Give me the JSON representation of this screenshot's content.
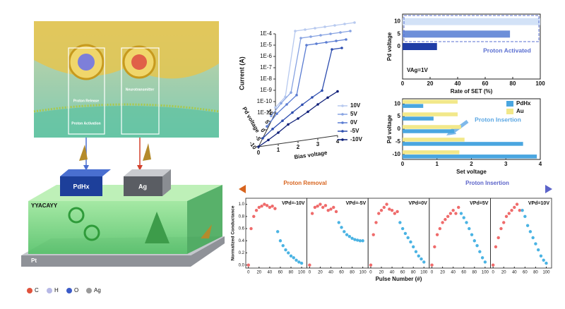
{
  "illustration": {
    "proton_release": "Proton Release",
    "neurotransmitter": "Neurotransmitter",
    "proton_activation": "Proton Activation",
    "electrode_1": "PdHx",
    "electrode_2": "Ag",
    "peptide": "YYACAYY",
    "substrate": "Pt",
    "legend": [
      "C",
      "H",
      "O",
      "Ag"
    ]
  },
  "chart_data": [
    {
      "type": "line3d",
      "ylabel": "Current (A)",
      "xlabel": "Bias voltage",
      "zlabel": "Pd voltage",
      "log_y": true,
      "x": [
        0,
        0.5,
        1,
        1.5,
        2,
        2.5,
        3,
        3.5,
        4
      ],
      "ylim": [
        1e-11,
        0.0001
      ],
      "yticks": [
        {
          "value": 0.0001,
          "label": "1E-4"
        },
        {
          "value": 1e-05,
          "label": "1E-5"
        },
        {
          "value": 1e-06,
          "label": "1E-6"
        },
        {
          "value": 1e-07,
          "label": "1E-7"
        },
        {
          "value": 1e-08,
          "label": "1E-8"
        },
        {
          "value": 1e-09,
          "label": "1E-9"
        },
        {
          "value": 1e-10,
          "label": "1E-10"
        },
        {
          "value": 1e-11,
          "label": "1E-11"
        }
      ],
      "xticks": [
        0,
        1,
        2,
        3,
        4
      ],
      "zticks": [
        10,
        5,
        0,
        -5,
        -10
      ],
      "series": [
        {
          "name": "10V",
          "color": "#b7c9ef",
          "values": [
            3e-11,
            2e-10,
            0.0001,
            0.0001,
            0.0001,
            0.0001,
            0.0001,
            0.0001,
            0.0001
          ]
        },
        {
          "name": "5V",
          "color": "#87a3e2",
          "values": [
            3e-11,
            3e-10,
            2e-09,
            0.0001,
            0.0001,
            0.0001,
            0.0001,
            0.0001,
            0.0001
          ]
        },
        {
          "name": "0V",
          "color": "#5a7cd2",
          "values": [
            2e-11,
            2e-10,
            1e-09,
            5e-09,
            0.0001,
            0.0001,
            0.0001,
            0.0001,
            0.0001
          ]
        },
        {
          "name": "-5V",
          "color": "#2c4cae",
          "values": [
            1e-11,
            5e-11,
            2e-10,
            8e-10,
            3e-09,
            1e-08,
            3e-08,
            0.0001,
            0.0001
          ]
        },
        {
          "name": "-10V",
          "color": "#0e1f78",
          "values": [
            1e-11,
            3e-11,
            1e-10,
            4e-10,
            1e-09,
            3e-09,
            1e-08,
            3e-08,
            8e-08
          ]
        }
      ]
    },
    {
      "type": "bar",
      "ylabel": "Pd voltage",
      "xlabel": "Rate of SET (%)",
      "annotations": [
        "Proton Activated",
        "VAg=1V"
      ],
      "y": [
        10,
        5,
        0
      ],
      "ylim": [
        -13,
        13
      ],
      "yticks": [
        0,
        5,
        10
      ],
      "xlim": [
        0,
        100
      ],
      "xticks": [
        0,
        20,
        40,
        60,
        80,
        100
      ],
      "series": [
        {
          "colors": [
            "#d3e2f7",
            "#6d8fd9",
            "#1f3da6"
          ],
          "values": [
            100,
            78,
            25
          ]
        }
      ]
    },
    {
      "type": "bar",
      "ylabel": "Pd voltage",
      "xlabel": "Set voltage",
      "annotations": [
        "Proton Insertion"
      ],
      "y": [
        10,
        5,
        0,
        -5,
        -10
      ],
      "ylim": [
        -12,
        12
      ],
      "yticks": [
        -10,
        -5,
        0,
        5,
        10
      ],
      "xlim": [
        0,
        4
      ],
      "xticks": [
        0,
        1,
        2,
        3,
        4
      ],
      "series": [
        {
          "name": "PdHx",
          "color": "#4aa6e0",
          "values": [
            0.6,
            0.9,
            1.5,
            3.5,
            3.9
          ]
        },
        {
          "name": "Au",
          "color": "#f2e88a",
          "values": [
            1.6,
            1.6,
            1.7,
            1.8,
            1.65
          ]
        }
      ]
    },
    {
      "type": "scatter",
      "ylabel": "Normalized Conductance",
      "xlabel": "Pulse Number (#)",
      "annotations": [
        "Proton Removal",
        "Proton Insertion"
      ],
      "xlim": [
        -5,
        110
      ],
      "ylim": [
        -0.05,
        1.1
      ],
      "xticks": [
        0,
        20,
        40,
        60,
        80,
        100
      ],
      "yticks": [
        {
          "value": 0,
          "label": "0.0"
        },
        {
          "value": 0.2,
          "label": "0.2"
        },
        {
          "value": 0.4,
          "label": "0.4"
        },
        {
          "value": 0.6,
          "label": "0.6"
        },
        {
          "value": 0.8,
          "label": "0.8"
        },
        {
          "value": 1,
          "label": "1.0"
        }
      ],
      "panels": [
        {
          "label": "VPd=-10V",
          "series": [
            {
              "color": "#ef6b6b",
              "x": [
                0,
                5,
                10,
                15,
                20,
                25,
                30,
                35,
                40,
                45,
                50
              ],
              "values": [
                0.0,
                0.6,
                0.8,
                0.9,
                0.95,
                0.97,
                1.0,
                0.98,
                0.95,
                0.97,
                0.93
              ]
            },
            {
              "color": "#4ab3e3",
              "x": [
                55,
                60,
                65,
                70,
                75,
                80,
                85,
                90,
                95,
                100
              ],
              "values": [
                0.55,
                0.4,
                0.32,
                0.25,
                0.2,
                0.15,
                0.12,
                0.08,
                0.05,
                0.03
              ]
            }
          ]
        },
        {
          "label": "VPd=-5V",
          "series": [
            {
              "color": "#ef6b6b",
              "x": [
                0,
                5,
                10,
                15,
                20,
                25,
                30,
                35,
                40,
                45,
                50
              ],
              "values": [
                0.0,
                0.85,
                0.95,
                0.97,
                1.0,
                0.95,
                0.98,
                0.9,
                0.92,
                0.95,
                0.88
              ]
            },
            {
              "color": "#4ab3e3",
              "x": [
                55,
                60,
                65,
                70,
                75,
                80,
                85,
                90,
                95,
                100
              ],
              "values": [
                0.7,
                0.62,
                0.55,
                0.5,
                0.47,
                0.44,
                0.42,
                0.41,
                0.4,
                0.4
              ]
            }
          ]
        },
        {
          "label": "VPd=0V",
          "series": [
            {
              "color": "#ef6b6b",
              "x": [
                0,
                5,
                10,
                15,
                20,
                25,
                30,
                35,
                40,
                45,
                50
              ],
              "values": [
                0.0,
                0.5,
                0.7,
                0.85,
                0.9,
                0.95,
                1.0,
                0.92,
                0.9,
                0.85,
                0.88
              ]
            },
            {
              "color": "#4ab3e3",
              "x": [
                55,
                60,
                65,
                70,
                75,
                80,
                85,
                90,
                95,
                100
              ],
              "values": [
                0.7,
                0.6,
                0.52,
                0.45,
                0.38,
                0.3,
                0.22,
                0.15,
                0.1,
                0.05
              ]
            }
          ]
        },
        {
          "label": "VPd=5V",
          "series": [
            {
              "color": "#ef6b6b",
              "x": [
                0,
                5,
                10,
                15,
                20,
                25,
                30,
                35,
                40,
                45,
                50
              ],
              "values": [
                0.0,
                0.3,
                0.5,
                0.6,
                0.7,
                0.75,
                0.8,
                0.85,
                0.9,
                0.85,
                0.95
              ]
            },
            {
              "color": "#4ab3e3",
              "x": [
                55,
                60,
                65,
                70,
                75,
                80,
                85,
                90,
                95,
                100
              ],
              "values": [
                0.85,
                0.78,
                0.7,
                0.6,
                0.5,
                0.4,
                0.32,
                0.22,
                0.12,
                0.05
              ]
            }
          ]
        },
        {
          "label": "VPd=10V",
          "series": [
            {
              "color": "#ef6b6b",
              "x": [
                0,
                5,
                10,
                15,
                20,
                25,
                30,
                35,
                40,
                45,
                50
              ],
              "values": [
                0.0,
                0.3,
                0.45,
                0.6,
                0.7,
                0.8,
                0.85,
                0.9,
                0.95,
                1.0,
                0.9
              ]
            },
            {
              "color": "#4ab3e3",
              "x": [
                55,
                60,
                65,
                70,
                75,
                80,
                85,
                90,
                95,
                100
              ],
              "values": [
                0.9,
                0.8,
                0.65,
                0.55,
                0.45,
                0.35,
                0.25,
                0.15,
                0.08,
                0.03
              ]
            }
          ]
        }
      ]
    }
  ]
}
